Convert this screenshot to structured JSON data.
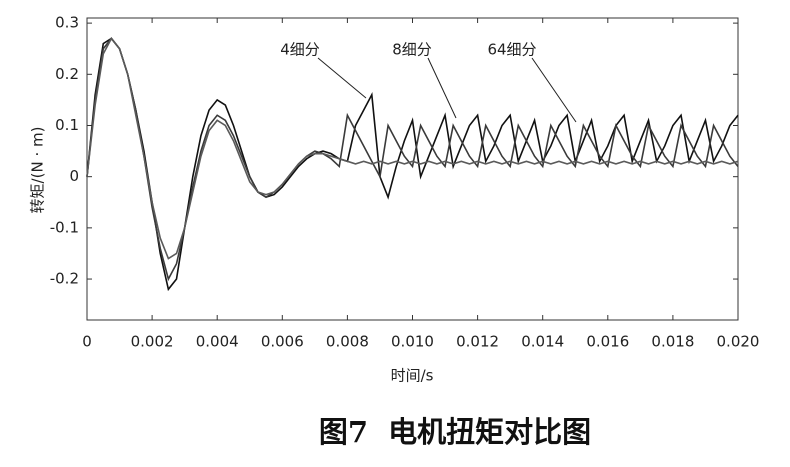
{
  "chart_data": {
    "type": "line",
    "title": "图7  电机扭矩对比图",
    "xlabel": "时间/s",
    "ylabel": "转矩/(N · m)",
    "x": [
      0,
      0.00025,
      0.0005,
      0.00075,
      0.001,
      0.00125,
      0.0015,
      0.00175,
      0.002,
      0.00225,
      0.0025,
      0.00275,
      0.003,
      0.00325,
      0.0035,
      0.00375,
      0.004,
      0.00425,
      0.0045,
      0.00475,
      0.005,
      0.00525,
      0.0055,
      0.00575,
      0.006,
      0.00625,
      0.0065,
      0.00675,
      0.007,
      0.00725,
      0.0075,
      0.00775,
      0.008,
      0.00825,
      0.0085,
      0.00875,
      0.009,
      0.00925,
      0.0095,
      0.00975,
      0.01,
      0.01025,
      0.0105,
      0.01075,
      0.011,
      0.01125,
      0.0115,
      0.01175,
      0.012,
      0.01225,
      0.0125,
      0.01275,
      0.013,
      0.01325,
      0.0135,
      0.01375,
      0.014,
      0.01425,
      0.0145,
      0.01475,
      0.015,
      0.01525,
      0.0155,
      0.01575,
      0.016,
      0.01625,
      0.0165,
      0.01675,
      0.017,
      0.01725,
      0.0175,
      0.01775,
      0.018,
      0.01825,
      0.0185,
      0.01875,
      0.019,
      0.01925,
      0.0195,
      0.01975,
      0.02
    ],
    "series": [
      {
        "name": "4细分",
        "color": "#111111",
        "values": [
          0,
          0.16,
          0.26,
          0.27,
          0.25,
          0.2,
          0.13,
          0.05,
          -0.05,
          -0.15,
          -0.22,
          -0.2,
          -0.1,
          0.0,
          0.08,
          0.13,
          0.15,
          0.14,
          0.1,
          0.05,
          0.0,
          -0.03,
          -0.04,
          -0.035,
          -0.02,
          0.0,
          0.02,
          0.035,
          0.045,
          0.05,
          0.045,
          0.035,
          0.03,
          0.1,
          0.13,
          0.16,
          0.0,
          -0.04,
          0.02,
          0.07,
          0.11,
          0.0,
          0.04,
          0.08,
          0.12,
          0.02,
          0.06,
          0.1,
          0.12,
          0.03,
          0.06,
          0.1,
          0.12,
          0.03,
          0.07,
          0.11,
          0.03,
          0.06,
          0.1,
          0.12,
          0.03,
          0.07,
          0.11,
          0.03,
          0.06,
          0.1,
          0.12,
          0.03,
          0.07,
          0.11,
          0.03,
          0.06,
          0.1,
          0.12,
          0.03,
          0.07,
          0.11,
          0.03,
          0.06,
          0.1,
          0.12
        ]
      },
      {
        "name": "8细分",
        "color": "#3a3a3a",
        "values": [
          0,
          0.15,
          0.25,
          0.27,
          0.25,
          0.2,
          0.13,
          0.04,
          -0.06,
          -0.14,
          -0.2,
          -0.17,
          -0.1,
          -0.02,
          0.05,
          0.1,
          0.12,
          0.11,
          0.08,
          0.04,
          0.0,
          -0.03,
          -0.04,
          -0.03,
          -0.015,
          0.005,
          0.025,
          0.04,
          0.05,
          0.045,
          0.035,
          0.02,
          0.12,
          0.09,
          0.06,
          0.03,
          0.0,
          0.1,
          0.07,
          0.04,
          0.02,
          0.1,
          0.07,
          0.04,
          0.02,
          0.1,
          0.07,
          0.04,
          0.02,
          0.1,
          0.07,
          0.04,
          0.02,
          0.1,
          0.07,
          0.04,
          0.02,
          0.1,
          0.07,
          0.04,
          0.02,
          0.1,
          0.07,
          0.04,
          0.02,
          0.1,
          0.07,
          0.04,
          0.02,
          0.1,
          0.07,
          0.04,
          0.02,
          0.1,
          0.07,
          0.04,
          0.02,
          0.1,
          0.07,
          0.04,
          0.02
        ]
      },
      {
        "name": "64细分",
        "color": "#5a5a5a",
        "values": [
          0,
          0.14,
          0.24,
          0.27,
          0.25,
          0.2,
          0.12,
          0.04,
          -0.05,
          -0.12,
          -0.16,
          -0.15,
          -0.1,
          -0.03,
          0.04,
          0.09,
          0.11,
          0.1,
          0.07,
          0.03,
          -0.01,
          -0.03,
          -0.035,
          -0.03,
          -0.015,
          0.005,
          0.025,
          0.04,
          0.045,
          0.045,
          0.04,
          0.035,
          0.03,
          0.025,
          0.03,
          0.025,
          0.03,
          0.025,
          0.03,
          0.025,
          0.03,
          0.025,
          0.03,
          0.025,
          0.03,
          0.025,
          0.03,
          0.025,
          0.03,
          0.025,
          0.03,
          0.025,
          0.03,
          0.025,
          0.03,
          0.025,
          0.03,
          0.025,
          0.03,
          0.025,
          0.03,
          0.025,
          0.03,
          0.025,
          0.03,
          0.025,
          0.03,
          0.025,
          0.03,
          0.025,
          0.03,
          0.025,
          0.03,
          0.025,
          0.03,
          0.025,
          0.03,
          0.025,
          0.03,
          0.025,
          0.03
        ]
      }
    ],
    "xlim": [
      0,
      0.02
    ],
    "ylim": [
      -0.28,
      0.31
    ],
    "xticks": [
      0,
      0.002,
      0.004,
      0.006,
      0.008,
      {
        "value": 0.01,
        "label": "0.010"
      },
      0.012,
      0.014,
      0.016,
      0.018,
      {
        "value": 0.02,
        "label": "0.020"
      }
    ],
    "yticks": [
      -0.2,
      -0.1,
      0,
      0.1,
      0.2,
      0.3
    ],
    "grid": false,
    "annotations": [
      "4细分",
      "8细分",
      "64细分"
    ]
  }
}
